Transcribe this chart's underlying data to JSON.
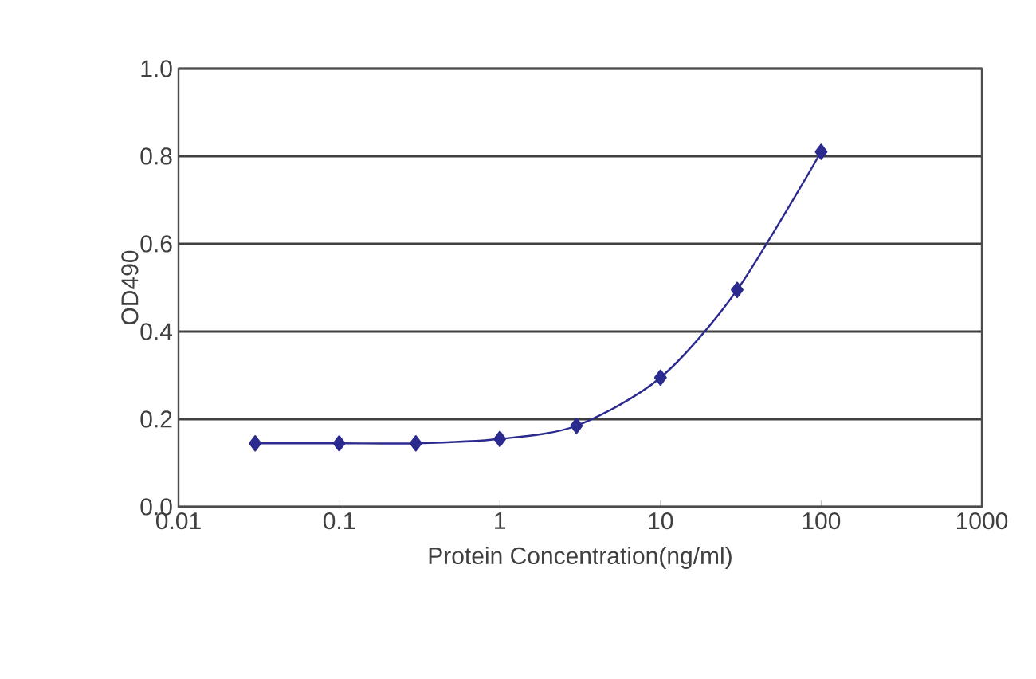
{
  "chart_data": {
    "type": "line",
    "xlabel": "Protein Concentration(ng/ml)",
    "ylabel": "OD490",
    "x": [
      0.03,
      0.1,
      0.3,
      1,
      3,
      10,
      30,
      100
    ],
    "series": [
      {
        "color": "#2b2b8f",
        "values": [
          0.145,
          0.145,
          0.145,
          0.155,
          0.185,
          0.295,
          0.495,
          0.81
        ]
      }
    ],
    "log": "x",
    "xlim": [
      0.01,
      1000
    ],
    "xticks": [
      0.01,
      0.1,
      1,
      10,
      100,
      1000
    ],
    "ylim": [
      0,
      1
    ],
    "yticks": [
      {
        "value": 0,
        "label": "0.0"
      },
      {
        "value": 0.2,
        "label": "0.2"
      },
      {
        "value": 0.4,
        "label": "0.4"
      },
      {
        "value": 0.6,
        "label": "0.6"
      },
      {
        "value": 0.8,
        "label": "0.8"
      },
      {
        "value": 1,
        "label": "1.0"
      }
    ],
    "grid": "y",
    "marker": "diamond"
  }
}
